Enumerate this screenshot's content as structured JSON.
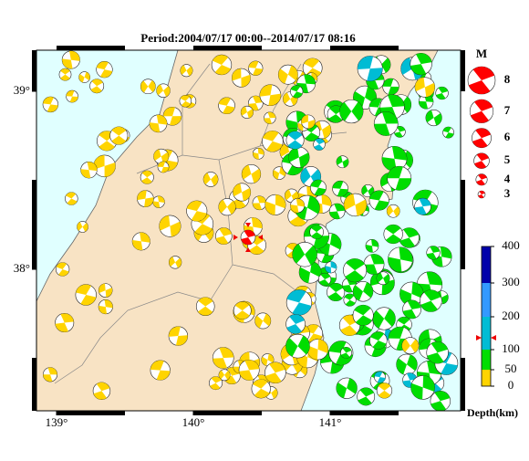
{
  "title": "Period:2004/07/17 00:00--2014/07/17 08:16",
  "map": {
    "lon_ticks": [
      {
        "value": 139,
        "label": "139°"
      },
      {
        "value": 140,
        "label": "140°"
      },
      {
        "value": 141,
        "label": "141°"
      }
    ],
    "lat_ticks": [
      {
        "value": 39,
        "label": "39°"
      },
      {
        "value": 38,
        "label": "38°"
      }
    ]
  },
  "magnitude_legend": {
    "title": "M",
    "magnitudes": [
      8,
      7,
      6,
      5,
      4,
      3
    ]
  },
  "depth_scale": {
    "label": "Depth(km)",
    "ticks": [
      0,
      50,
      100,
      200,
      300,
      400
    ]
  }
}
